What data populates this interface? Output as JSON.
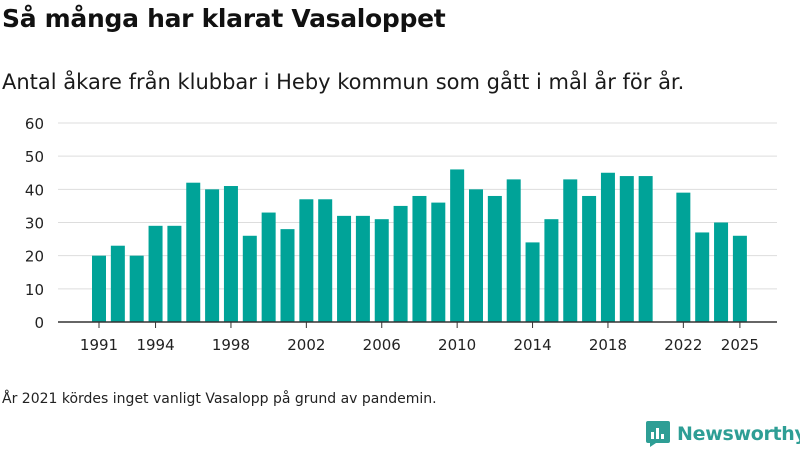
{
  "title": "Så många har klarat Vasaloppet",
  "subtitle": "Antal åkare från klubbar i Heby kommun som gått i mål år för år.",
  "note": "År 2021 kördes inget vanligt Vasalopp på grund av pandemin.",
  "brand": {
    "name": "Newsworthy",
    "icon": "newsworthy-logo-icon",
    "color": "#2e9e95"
  },
  "colors": {
    "bar": "#00a398",
    "grid": "#dddddd",
    "axis": "#333333",
    "text": "#222222"
  },
  "chart_data": {
    "type": "bar",
    "x": [
      1991,
      1992,
      1993,
      1994,
      1995,
      1996,
      1997,
      1998,
      1999,
      2000,
      2001,
      2002,
      2003,
      2004,
      2005,
      2006,
      2007,
      2008,
      2009,
      2010,
      2011,
      2012,
      2013,
      2014,
      2015,
      2016,
      2017,
      2018,
      2019,
      2020,
      2022,
      2023,
      2024,
      2025
    ],
    "values": [
      20,
      23,
      20,
      29,
      29,
      42,
      40,
      41,
      26,
      33,
      28,
      37,
      37,
      32,
      32,
      31,
      35,
      38,
      36,
      46,
      40,
      38,
      43,
      24,
      31,
      43,
      38,
      45,
      44,
      44,
      39,
      27,
      30,
      26
    ],
    "xticks": [
      "1991",
      "1994",
      "1998",
      "2002",
      "2006",
      "2010",
      "2014",
      "2018",
      "2022",
      "2025"
    ],
    "xtick_years": [
      1991,
      1994,
      1998,
      2002,
      2006,
      2010,
      2014,
      2018,
      2022,
      2025
    ],
    "yticks": [
      "0",
      "10",
      "20",
      "30",
      "40",
      "50",
      "60"
    ],
    "ylim": [
      0,
      60
    ],
    "grid": true,
    "legend": "none"
  }
}
